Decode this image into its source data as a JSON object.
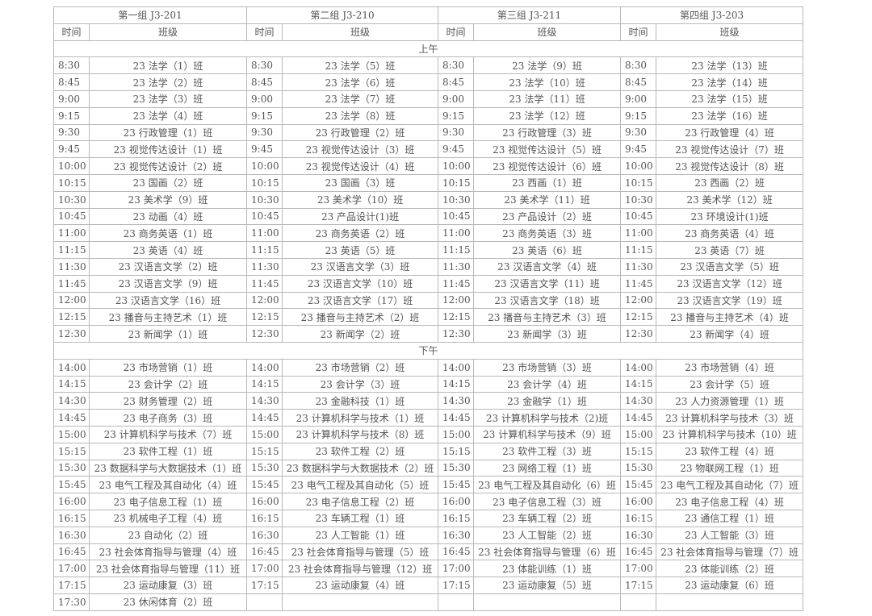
{
  "groups": [
    "第一组 J3-201",
    "第二组 J3-210",
    "第三组 J3-211",
    "第四组 J3-203"
  ],
  "col_time": "时间",
  "col_class": "班级",
  "sections": [
    {
      "label": "上午",
      "rows": [
        [
          [
            "8:30",
            "23 法学（1）班"
          ],
          [
            "8:30",
            "23 法学（5）班"
          ],
          [
            "8:30",
            "23 法学（9）班"
          ],
          [
            "8:30",
            "23 法学（13）班"
          ]
        ],
        [
          [
            "8:45",
            "23 法学（2）班"
          ],
          [
            "8:45",
            "23 法学（6）班"
          ],
          [
            "8:45",
            "23 法学（10）班"
          ],
          [
            "8:45",
            "23 法学（14）班"
          ]
        ],
        [
          [
            "9:00",
            "23 法学（3）班"
          ],
          [
            "9:00",
            "23 法学（7）班"
          ],
          [
            "9:00",
            "23 法学（11）班"
          ],
          [
            "9:00",
            "23 法学（15）班"
          ]
        ],
        [
          [
            "9:15",
            "23 法学（4）班"
          ],
          [
            "9:15",
            "23 法学（8）班"
          ],
          [
            "9:15",
            "23 法学（12）班"
          ],
          [
            "9:15",
            "23 法学（16）班"
          ]
        ],
        [
          [
            "9:30",
            "23 行政管理（1）班"
          ],
          [
            "9:30",
            "23 行政管理（2）班"
          ],
          [
            "9:30",
            "23 行政管理（3）班"
          ],
          [
            "9:30",
            "23 行政管理（4）班"
          ]
        ],
        [
          [
            "9:45",
            "23 视觉传达设计（1）班"
          ],
          [
            "9:45",
            "23 视觉传达设计（3）班"
          ],
          [
            "9:45",
            "23 视觉传达设计（5）班"
          ],
          [
            "9:45",
            "23 视觉传达设计（7）班"
          ]
        ],
        [
          [
            "10:00",
            "23 视觉传达设计（2）班"
          ],
          [
            "10:00",
            "23 视觉传达设计（4）班"
          ],
          [
            "10:00",
            "23 视觉传达设计（6）班"
          ],
          [
            "10:00",
            "23 视觉传达设计（8）班"
          ]
        ],
        [
          [
            "10:15",
            "23 国画（2）班"
          ],
          [
            "10:15",
            "23 国画（3）班"
          ],
          [
            "10:15",
            "23 西画（1）班"
          ],
          [
            "10:15",
            "23 西画（2）班"
          ]
        ],
        [
          [
            "10:30",
            "23 美术学（9）班"
          ],
          [
            "10:30",
            "23 美术学（10）班"
          ],
          [
            "10:30",
            "23 美术学（11）班"
          ],
          [
            "10:30",
            "23 美术学（12）班"
          ]
        ],
        [
          [
            "10:45",
            "23 动画（4）班"
          ],
          [
            "10:45",
            "23 产品设计(1)班"
          ],
          [
            "10:45",
            "23 产品设计（2）班"
          ],
          [
            "10:45",
            "23 环境设计(1)班"
          ]
        ],
        [
          [
            "11:00",
            "23 商务英语（1）班"
          ],
          [
            "11:00",
            "23 商务英语（2）班"
          ],
          [
            "11:00",
            "23 商务英语（3）班"
          ],
          [
            "11:00",
            "23 商务英语（4）班"
          ]
        ],
        [
          [
            "11:15",
            "23 英语（4）班"
          ],
          [
            "11:15",
            "23 英语（5）班"
          ],
          [
            "11:15",
            "23 英语（6）班"
          ],
          [
            "11:15",
            "23 英语（7）班"
          ]
        ],
        [
          [
            "11:30",
            "23 汉语言文学（2）班"
          ],
          [
            "11:30",
            "23 汉语言文学（3）班"
          ],
          [
            "11:30",
            "23 汉语言文学（4）班"
          ],
          [
            "11:30",
            "23 汉语言文学（5）班"
          ]
        ],
        [
          [
            "11:45",
            "23 汉语言文学（9）班"
          ],
          [
            "11:45",
            "23 汉语言文学（10）班"
          ],
          [
            "11:45",
            "23 汉语言文学（11）班"
          ],
          [
            "11:45",
            "23 汉语言文学（12）班"
          ]
        ],
        [
          [
            "12:00",
            "23 汉语言文学（16）班"
          ],
          [
            "12:00",
            "23 汉语言文学（17）班"
          ],
          [
            "12:00",
            "23 汉语言文学（18）班"
          ],
          [
            "12:00",
            "23 汉语言文学（19）班"
          ]
        ],
        [
          [
            "12:15",
            "23 播音与主持艺术（1）班"
          ],
          [
            "12:15",
            "23 播音与主持艺术（2）班"
          ],
          [
            "12:15",
            "23 播音与主持艺术（3）班"
          ],
          [
            "12:15",
            "23 播音与主持艺术（4）班"
          ]
        ],
        [
          [
            "12:30",
            "23 新闻学（1）班"
          ],
          [
            "12:30",
            "23 新闻学（2）班"
          ],
          [
            "12:30",
            "23 新闻学（3）班"
          ],
          [
            "12:30",
            "23 新闻学（4）班"
          ]
        ]
      ]
    },
    {
      "label": "下午",
      "rows": [
        [
          [
            "14:00",
            "23 市场营销（1）班"
          ],
          [
            "14:00",
            "23 市场营销（2）班"
          ],
          [
            "14:00",
            "23 市场营销（3）班"
          ],
          [
            "14:00",
            "23 市场营销（4）班"
          ]
        ],
        [
          [
            "14:15",
            "23 会计学（2）班"
          ],
          [
            "14:15",
            "23 会计学（3）班"
          ],
          [
            "14:15",
            "23 会计学（4）班"
          ],
          [
            "14:15",
            "23 会计学（5）班"
          ]
        ],
        [
          [
            "14:30",
            "23 财务管理（2）班"
          ],
          [
            "14:30",
            "23 金融科技（1）班"
          ],
          [
            "14:30",
            "23 金融学（1）班"
          ],
          [
            "14:30",
            "23 人力资源管理（1）班"
          ]
        ],
        [
          [
            "14:45",
            "23 电子商务（3）班"
          ],
          [
            "14:45",
            "23 计算机科学与技术（1）班"
          ],
          [
            "14:45",
            "23 计算机科学与技术（2)班"
          ],
          [
            "14:45",
            "23 计算机科学与技术（3）班"
          ]
        ],
        [
          [
            "15:00",
            "23 计算机科学与技术（7）班"
          ],
          [
            "15:00",
            "23 计算机科学与技术（8）班"
          ],
          [
            "15:00",
            "23 计算机科学与技术（9）班"
          ],
          [
            "15:00",
            "23 计算机科学与技术（10）班"
          ]
        ],
        [
          [
            "15:15",
            "23 软件工程（1）班"
          ],
          [
            "15:15",
            "23 软件工程（2）班"
          ],
          [
            "15:15",
            "23 软件工程（3）班"
          ],
          [
            "15:15",
            "23 软件工程（4）班"
          ]
        ],
        [
          [
            "15:30",
            "23 数据科学与大数据技术（1）班"
          ],
          [
            "15:30",
            "23 数据科学与大数据技术（2）班"
          ],
          [
            "15:30",
            "23 网络工程（1）班"
          ],
          [
            "15:30",
            "23 物联网工程（1）班"
          ]
        ],
        [
          [
            "15:45",
            "23 电气工程及其自动化（4）班"
          ],
          [
            "15:45",
            "23 电气工程及其自动化（5）班"
          ],
          [
            "15:45",
            "23 电气工程及其自动化（6）班"
          ],
          [
            "15:45",
            "23 电气工程及其自动化（7）班"
          ]
        ],
        [
          [
            "16:00",
            "23 电子信息工程（1）班"
          ],
          [
            "16:00",
            "23 电子信息工程（2）班"
          ],
          [
            "16:00",
            "23 电子信息工程（3）班"
          ],
          [
            "16:00",
            "23 电子信息工程（4）班"
          ]
        ],
        [
          [
            "16:15",
            "23 机械电子工程（4）班"
          ],
          [
            "16:15",
            "23 车辆工程（1）班"
          ],
          [
            "16:15",
            "23 车辆工程（2）班"
          ],
          [
            "16:15",
            "23 通信工程（1）班"
          ]
        ],
        [
          [
            "16:30",
            "23 自动化（2）班"
          ],
          [
            "16:30",
            "23 人工智能（1）班"
          ],
          [
            "16:30",
            "23 人工智能（2）班"
          ],
          [
            "16:30",
            "23 人工智能（3）班"
          ]
        ],
        [
          [
            "16:45",
            "23 社会体育指导与管理（4）班"
          ],
          [
            "16:45",
            "23 社会体育指导与管理（5）班"
          ],
          [
            "16:45",
            "23 社会体育指导与管理（6）班"
          ],
          [
            "16:45",
            "23 社会体育指导与管理（7）班"
          ]
        ],
        [
          [
            "17:00",
            "23 社会体育指导与管理（11）班"
          ],
          [
            "17:00",
            "23 社会体育指导与管理（12）班"
          ],
          [
            "17:00",
            "23 体能训练（1）班"
          ],
          [
            "17:00",
            "23 体能训练（2）班"
          ]
        ],
        [
          [
            "17:15",
            "23 运动康复（3）班"
          ],
          [
            "17:15",
            "23 运动康复（4）班"
          ],
          [
            "17:15",
            "23 运动康复（5）班"
          ],
          [
            "17:15",
            "23 运动康复（6）班"
          ]
        ],
        [
          [
            "17:30",
            "23 休闲体育（2）班"
          ],
          [
            "",
            ""
          ],
          [
            "",
            ""
          ],
          [
            "",
            ""
          ]
        ]
      ]
    }
  ]
}
